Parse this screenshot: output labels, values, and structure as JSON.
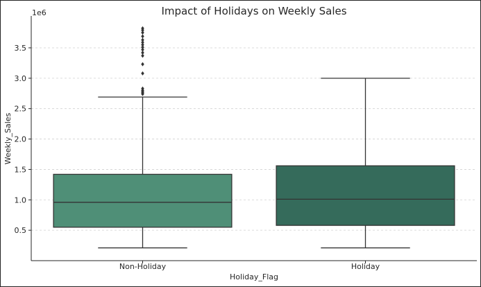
{
  "chart_data": {
    "type": "box",
    "title": "Impact of Holidays on Weekly Sales",
    "xlabel": "Holiday_Flag",
    "ylabel": "Weekly_Sales",
    "y_offset_label": "1e6",
    "ylim": [
      0.0,
      3.99
    ],
    "yticks": [
      0.5,
      1.0,
      1.5,
      2.0,
      2.5,
      3.0,
      3.5
    ],
    "ytick_labels": [
      "0.5",
      "1.0",
      "1.5",
      "2.0",
      "2.5",
      "3.0",
      "3.5"
    ],
    "grid": "horizontal-dashed",
    "categories": [
      "Non-Holiday",
      "Holiday"
    ],
    "boxes": [
      {
        "name": "Non-Holiday",
        "whisker_low": 0.21,
        "q1": 0.55,
        "median": 0.96,
        "q3": 1.42,
        "whisker_high": 2.69,
        "outliers": [
          2.74,
          2.76,
          2.78,
          2.8,
          2.83,
          3.08,
          3.23,
          3.37,
          3.42,
          3.47,
          3.51,
          3.55,
          3.59,
          3.63,
          3.69,
          3.75,
          3.79,
          3.82
        ],
        "color": "#4f8f77"
      },
      {
        "name": "Holiday",
        "whisker_low": 0.21,
        "q1": 0.58,
        "median": 1.01,
        "q3": 1.56,
        "whisker_high": 3.0,
        "outliers": [],
        "color": "#356b5b"
      }
    ]
  }
}
